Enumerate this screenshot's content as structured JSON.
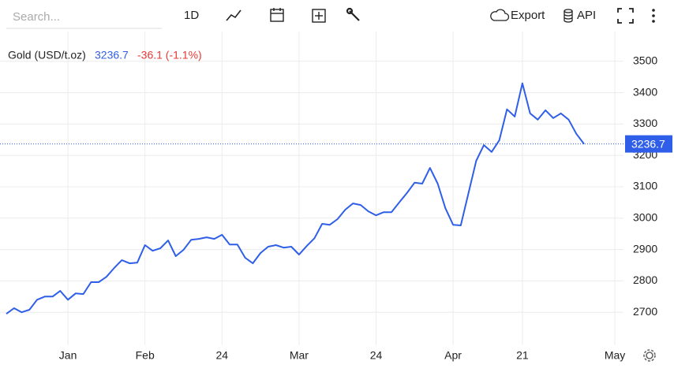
{
  "toolbar": {
    "search_placeholder": "Search...",
    "interval": "1D",
    "export": "Export",
    "api": "API"
  },
  "chart_data": {
    "type": "line",
    "title": "Gold (USD/t.oz)",
    "last_price": 3236.7,
    "change_label": "-36.1 (-1.1%)",
    "categories": [
      null,
      null,
      null,
      null,
      null,
      null,
      null,
      null,
      "Jan",
      null,
      null,
      null,
      null,
      null,
      null,
      null,
      null,
      null,
      "Feb",
      null,
      null,
      null,
      null,
      null,
      null,
      null,
      null,
      null,
      "24",
      null,
      null,
      null,
      null,
      null,
      null,
      null,
      null,
      null,
      "Mar",
      null,
      null,
      null,
      null,
      null,
      null,
      null,
      null,
      null,
      "24",
      null,
      null,
      null,
      null,
      null,
      null,
      null,
      null,
      null,
      "Apr",
      null,
      null,
      null,
      null,
      null,
      null,
      null,
      null,
      "21",
      null,
      null,
      null,
      null,
      null,
      null,
      null,
      null,
      null,
      null,
      null,
      "May"
    ],
    "series": [
      {
        "name": "Gold (USD/t.oz)",
        "color": "#2f5fe8",
        "values": [
          2695,
          2713,
          2700,
          2708,
          2740,
          2750,
          2750,
          2768,
          2740,
          2760,
          2758,
          2796,
          2796,
          2813,
          2841,
          2866,
          2856,
          2858,
          2914,
          2896,
          2904,
          2929,
          2879,
          2899,
          2931,
          2934,
          2939,
          2934,
          2947,
          2916,
          2916,
          2874,
          2856,
          2889,
          2909,
          2914,
          2906,
          2909,
          2884,
          2911,
          2936,
          2982,
          2979,
          2997,
          3027,
          3047,
          3042,
          3022,
          3009,
          3019,
          3019,
          3050,
          3080,
          3113,
          3110,
          3160,
          3110,
          3032,
          2979,
          2977,
          3080,
          3183,
          3233,
          3211,
          3248,
          3347,
          3324,
          3430,
          3334,
          3314,
          3344,
          3319,
          3334,
          3314,
          3269,
          3236.7,
          null,
          null,
          null,
          null
        ]
      }
    ],
    "ylim": [
      2595,
      3595
    ],
    "yticks": [
      2700,
      2800,
      2900,
      3000,
      3100,
      3200,
      3300,
      3400,
      3500
    ],
    "grid": true
  }
}
